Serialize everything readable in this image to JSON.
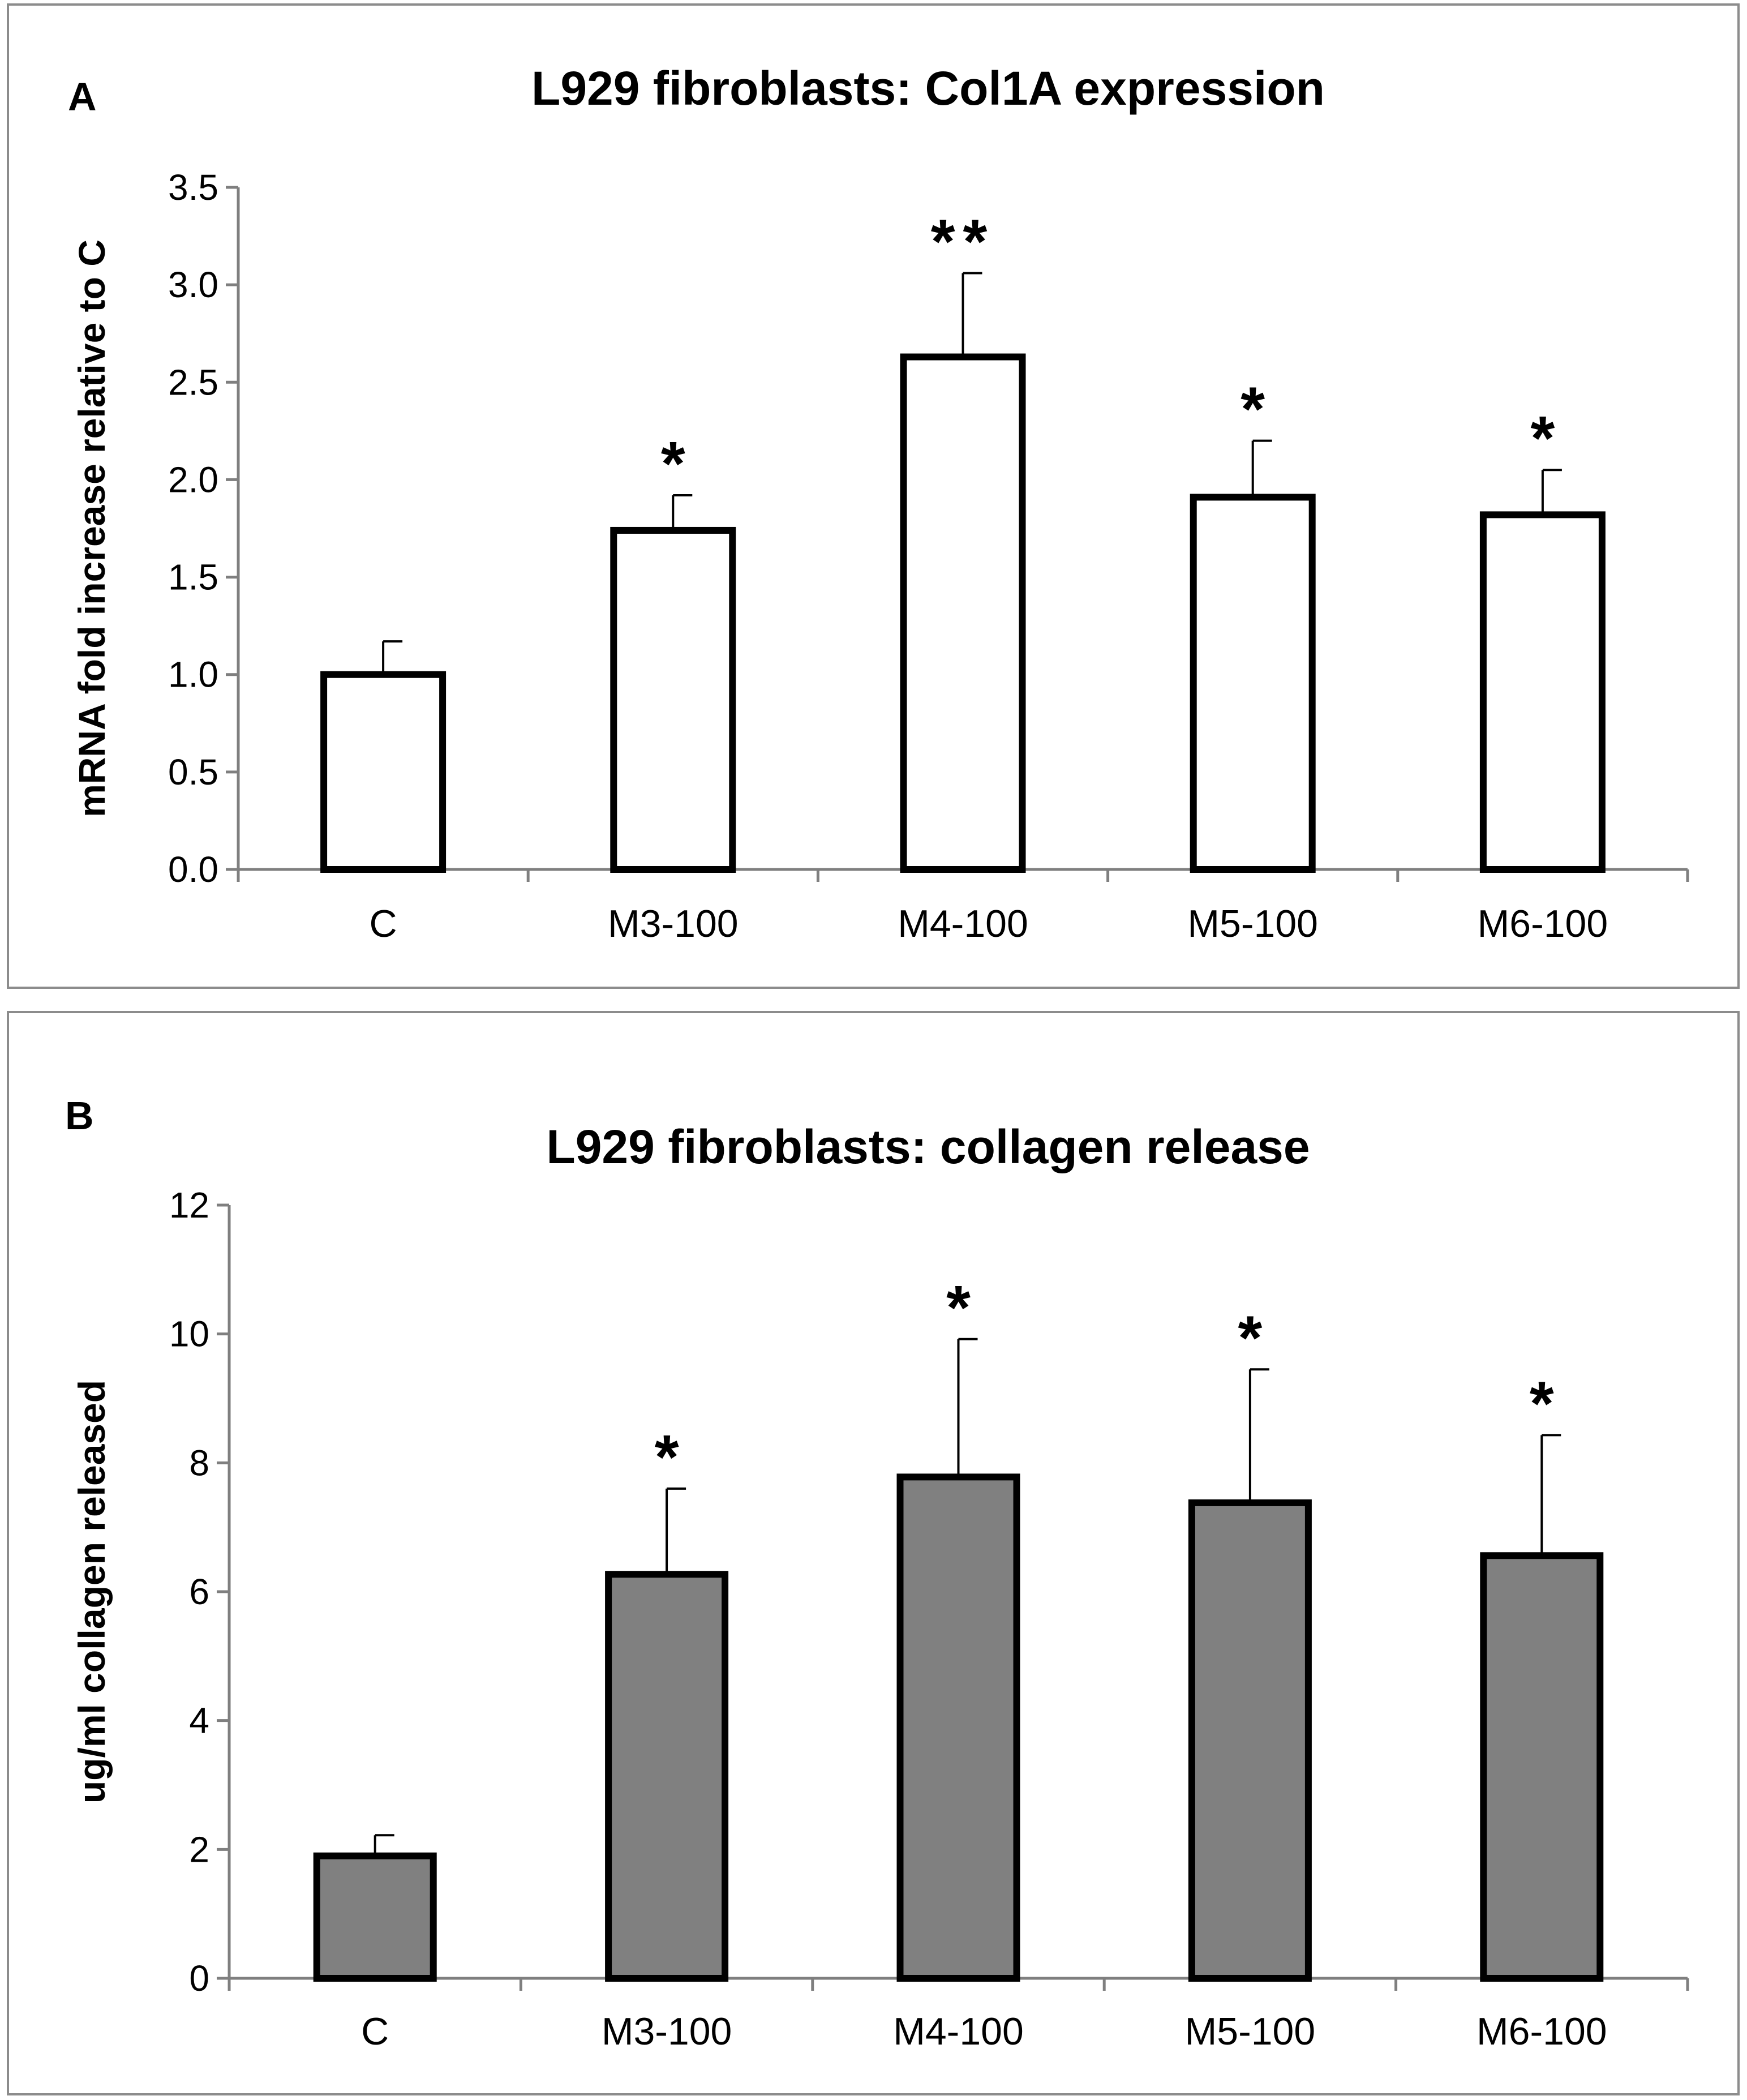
{
  "chart_data": [
    {
      "panel_label": "A",
      "type": "bar",
      "title": "L929 fibroblasts: Col1A expression",
      "xlabel": "",
      "ylabel": "mRNA fold increase relative to C",
      "categories": [
        "C",
        "M3-100",
        "M4-100",
        "M5-100",
        "M6-100"
      ],
      "values": [
        1.0,
        1.74,
        2.63,
        1.91,
        1.82
      ],
      "errors": [
        0.17,
        0.18,
        0.43,
        0.29,
        0.23
      ],
      "significance": [
        "",
        "*",
        "**",
        "*",
        "*"
      ],
      "ylim": [
        0,
        3.5
      ],
      "yticks": [
        "0.0",
        "0.5",
        "1.0",
        "1.5",
        "2.0",
        "2.5",
        "3.0",
        "3.5"
      ],
      "bar_fill": "#ffffff",
      "bar_stroke": "#000000"
    },
    {
      "panel_label": "B",
      "type": "bar",
      "title": "L929 fibroblasts: collagen release",
      "xlabel": "",
      "ylabel": "ug/ml collagen released",
      "categories": [
        "C",
        "M3-100",
        "M4-100",
        "M5-100",
        "M6-100"
      ],
      "values": [
        1.9,
        6.27,
        7.78,
        7.38,
        6.56
      ],
      "errors": [
        0.32,
        1.33,
        2.14,
        2.07,
        1.87
      ],
      "significance": [
        "",
        "*",
        "*",
        "*",
        "*"
      ],
      "ylim": [
        0,
        12
      ],
      "yticks": [
        "0",
        "2",
        "4",
        "6",
        "8",
        "10",
        "12"
      ],
      "bar_fill": "#808080",
      "bar_stroke": "#000000"
    }
  ]
}
